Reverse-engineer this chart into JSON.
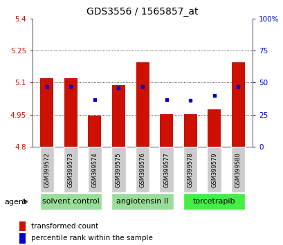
{
  "title": "GDS3556 / 1565857_at",
  "samples": [
    "GSM399572",
    "GSM399573",
    "GSM399574",
    "GSM399575",
    "GSM399576",
    "GSM399577",
    "GSM399578",
    "GSM399579",
    "GSM399580"
  ],
  "bar_values": [
    5.12,
    5.12,
    4.945,
    5.09,
    5.195,
    4.952,
    4.952,
    4.975,
    5.195
  ],
  "percentile_values": [
    47,
    47,
    37,
    46,
    47,
    37,
    36,
    40,
    47
  ],
  "y_min": 4.8,
  "y_max": 5.4,
  "y_ticks": [
    4.8,
    4.95,
    5.1,
    5.25,
    5.4
  ],
  "y_tick_labels": [
    "4.8",
    "4.95",
    "5.1",
    "5.25",
    "5.4"
  ],
  "y2_ticks": [
    0,
    25,
    50,
    75,
    100
  ],
  "y2_tick_labels": [
    "0",
    "25",
    "50",
    "75",
    "100%"
  ],
  "bar_color": "#cc1100",
  "marker_color": "#0000cc",
  "bar_bottom": 4.8,
  "groups": [
    {
      "label": "solvent control",
      "start": 0,
      "end": 3,
      "color": "#99dd99"
    },
    {
      "label": "angiotensin II",
      "start": 3,
      "end": 6,
      "color": "#99dd99"
    },
    {
      "label": "torcetrapib",
      "start": 6,
      "end": 9,
      "color": "#44ee44"
    }
  ],
  "agent_label": "agent",
  "legend_items": [
    {
      "color": "#cc1100",
      "label": "transformed count"
    },
    {
      "color": "#0000cc",
      "label": "percentile rank within the sample"
    }
  ],
  "background_color": "#ffffff",
  "sample_box_color": "#cccccc",
  "bar_width": 0.55,
  "title_fontsize": 10,
  "tick_fontsize": 7.5,
  "sample_fontsize": 6,
  "group_fontsize": 8,
  "legend_fontsize": 7.5
}
